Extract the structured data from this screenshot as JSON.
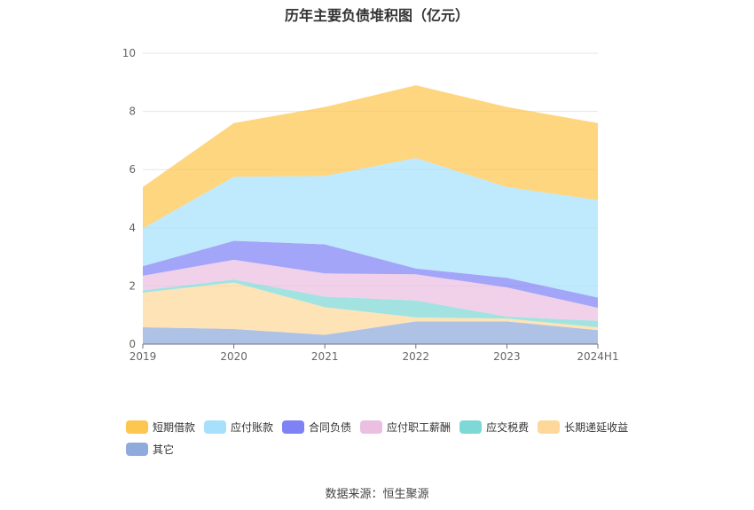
{
  "chart_title": "历年主要负债堆积图（亿元）",
  "source_label": "数据来源：恒生聚源",
  "chart_data": {
    "type": "area",
    "stacked": true,
    "title": "历年主要负债堆积图（亿元）",
    "categories": [
      "2019",
      "2020",
      "2021",
      "2022",
      "2023",
      "2024H1"
    ],
    "ylim": [
      0,
      10
    ],
    "yticks": [
      0,
      2,
      4,
      6,
      8,
      10
    ],
    "grid": true,
    "legend_position": "bottom",
    "series": [
      {
        "name": "其它",
        "color": "#8faadc",
        "values": [
          0.58,
          0.52,
          0.32,
          0.78,
          0.78,
          0.48
        ]
      },
      {
        "name": "长期递延收益",
        "color": "#fdd89a",
        "values": [
          1.19,
          1.6,
          0.95,
          0.14,
          0.1,
          0.1
        ]
      },
      {
        "name": "应交税费",
        "color": "#7ed8d6",
        "values": [
          0.08,
          0.1,
          0.36,
          0.58,
          0.07,
          0.22
        ]
      },
      {
        "name": "应付职工薪酬",
        "color": "#eabfe1",
        "values": [
          0.5,
          0.68,
          0.8,
          0.9,
          1.0,
          0.45
        ]
      },
      {
        "name": "合同负债",
        "color": "#7f82f5",
        "values": [
          0.33,
          0.65,
          1.0,
          0.2,
          0.33,
          0.35
        ]
      },
      {
        "name": "应付账款",
        "color": "#a6e0fb",
        "values": [
          1.3,
          2.2,
          2.35,
          3.8,
          3.12,
          3.35
        ]
      },
      {
        "name": "短期借款",
        "color": "#fdc64e",
        "values": [
          1.42,
          1.85,
          2.37,
          2.5,
          2.75,
          2.65
        ]
      }
    ],
    "legend_order": [
      "短期借款",
      "应付账款",
      "合同负债",
      "应付职工薪酬",
      "应交税费",
      "长期递延收益",
      "其它"
    ]
  }
}
